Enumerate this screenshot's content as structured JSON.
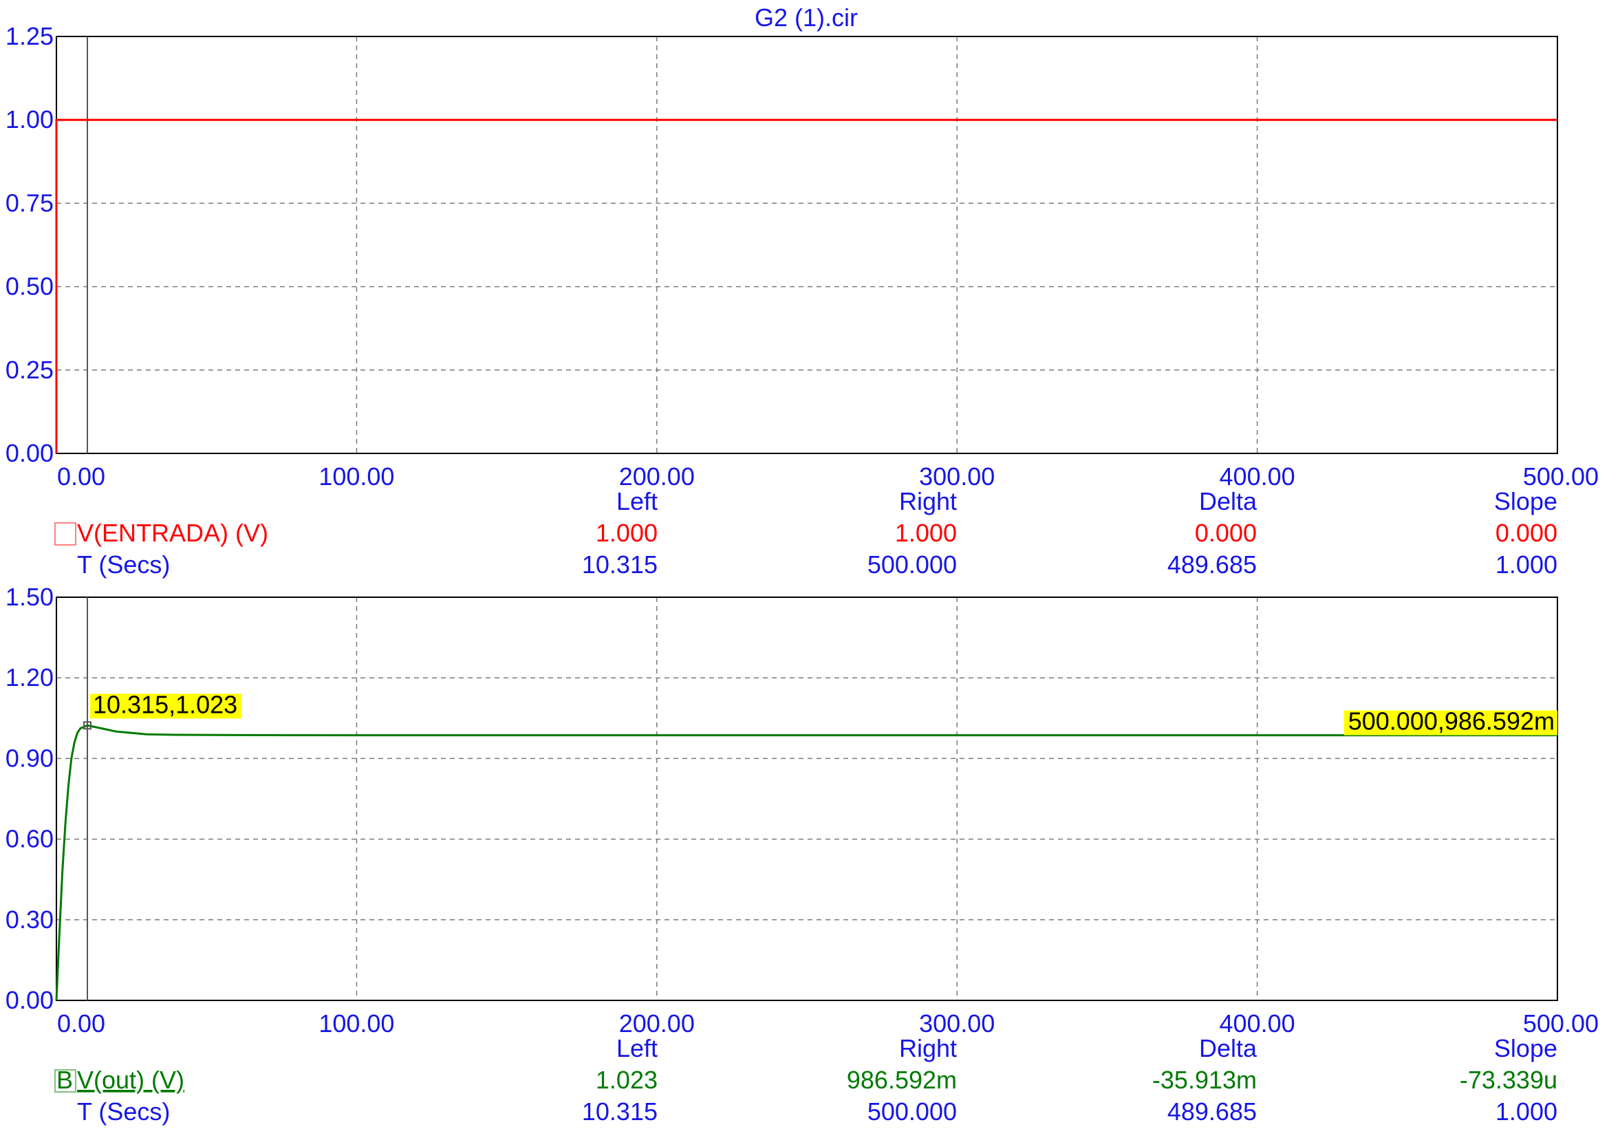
{
  "title": "G2 (1).cir",
  "colors": {
    "axis_text": "#1616e6",
    "entrada_trace": "#ff0000",
    "out_trace": "#007a00",
    "cursor_label_bg": "#ffff00",
    "grid": "#7a7a7a"
  },
  "chart_data": [
    {
      "type": "line",
      "title": "G2 (1).cir",
      "xlim": [
        0,
        500
      ],
      "ylim": [
        0,
        1.25
      ],
      "x_ticks": [
        "0.00",
        "100.00",
        "200.00",
        "300.00",
        "400.00",
        "500.00"
      ],
      "y_ticks": [
        "0.00",
        "0.25",
        "0.50",
        "0.75",
        "1.00",
        "1.25"
      ],
      "grid": true,
      "cursor_x": 10.315,
      "series": [
        {
          "name": "V(ENTRADA) (V)",
          "color": "#ff0000",
          "x": [
            0,
            0,
            500
          ],
          "y": [
            0,
            1.0,
            1.0
          ]
        }
      ]
    },
    {
      "type": "line",
      "xlim": [
        0,
        500
      ],
      "ylim": [
        0,
        1.5
      ],
      "x_ticks": [
        "0.00",
        "100.00",
        "200.00",
        "300.00",
        "400.00",
        "500.00"
      ],
      "y_ticks": [
        "0.00",
        "0.30",
        "0.60",
        "0.90",
        "1.20",
        "1.50"
      ],
      "grid": true,
      "cursor_x": 10.315,
      "series": [
        {
          "name": "V(out) (V)",
          "color": "#007a00",
          "x": [
            0,
            1,
            2,
            3,
            4,
            5,
            6,
            7,
            8,
            10.315,
            15,
            20,
            30,
            40,
            60,
            100,
            200,
            300,
            400,
            500
          ],
          "y": [
            0,
            0.25,
            0.48,
            0.66,
            0.8,
            0.9,
            0.96,
            0.995,
            1.012,
            1.023,
            1.012,
            1.0,
            0.99,
            0.988,
            0.987,
            0.9866,
            0.9866,
            0.9866,
            0.9866,
            0.986592
          ]
        }
      ],
      "cursor_labels": [
        {
          "text": "10.315,1.023",
          "x": 10.315,
          "y": 1.023
        },
        {
          "text": "500.000,986.592m",
          "x": 500,
          "y": 0.986592
        }
      ]
    }
  ],
  "panels": [
    {
      "x_ticks": [
        "0.00",
        "100.00",
        "200.00",
        "300.00",
        "400.00",
        "500.00"
      ],
      "y_ticks": [
        "0.00",
        "0.25",
        "0.50",
        "0.75",
        "1.00",
        "1.25"
      ],
      "readout": {
        "headers": [
          "Left",
          "Right",
          "Delta",
          "Slope"
        ],
        "trace_marker": "",
        "trace_name": "V(ENTRADA) (V)",
        "trace_values": [
          "1.000",
          "1.000",
          "0.000",
          "0.000"
        ],
        "time_name": "T (Secs)",
        "time_values": [
          "10.315",
          "500.000",
          "489.685",
          "1.000"
        ]
      }
    },
    {
      "x_ticks": [
        "0.00",
        "100.00",
        "200.00",
        "300.00",
        "400.00",
        "500.00"
      ],
      "y_ticks": [
        "0.00",
        "0.30",
        "0.60",
        "0.90",
        "1.20",
        "1.50"
      ],
      "readout": {
        "headers": [
          "Left",
          "Right",
          "Delta",
          "Slope"
        ],
        "trace_marker": "B",
        "trace_name": "V(out) (V)",
        "trace_values": [
          "1.023",
          "986.592m",
          "-35.913m",
          "-73.339u"
        ],
        "time_name": "T (Secs)",
        "time_values": [
          "10.315",
          "500.000",
          "489.685",
          "1.000"
        ]
      }
    }
  ]
}
